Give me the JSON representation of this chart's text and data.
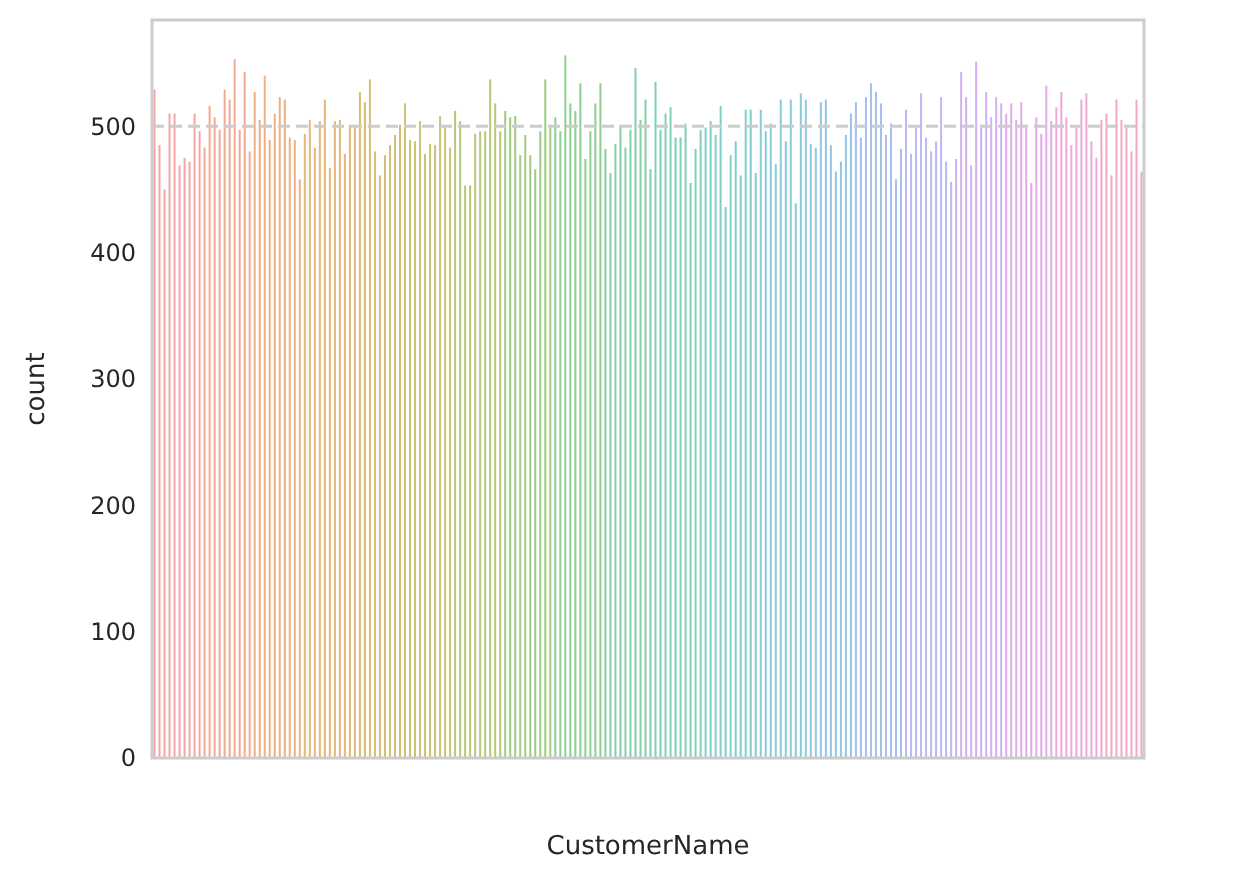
{
  "chart_data": {
    "type": "bar",
    "xlabel": "CustomerName",
    "ylabel": "count",
    "categories": [
      null,
      null,
      null,
      null,
      null,
      null,
      null,
      null,
      null,
      null,
      null,
      null,
      null,
      null,
      null,
      null,
      null,
      null,
      null,
      null,
      null,
      null,
      null,
      null,
      null,
      null,
      null,
      null,
      null,
      null,
      null,
      null,
      null,
      null,
      null,
      null,
      null,
      null,
      null,
      null,
      null,
      null,
      null,
      null,
      null,
      null,
      null,
      null,
      null,
      null,
      null,
      null,
      null,
      null,
      null,
      null,
      null,
      null,
      null,
      null,
      null,
      null,
      null,
      null,
      null,
      null,
      null,
      null,
      null,
      null,
      null,
      null,
      null,
      null,
      null,
      null,
      null,
      null,
      null,
      null,
      null,
      null,
      null,
      null,
      null,
      null,
      null,
      null,
      null,
      null,
      null,
      null,
      null,
      null,
      null,
      null,
      null,
      null,
      null,
      null,
      null,
      null,
      null,
      null,
      null,
      null,
      null,
      null,
      null,
      null,
      null,
      null,
      null,
      null,
      null,
      null,
      null,
      null,
      null,
      null,
      null,
      null,
      null,
      null,
      null,
      null,
      null,
      null,
      null,
      null,
      null,
      null,
      null,
      null,
      null,
      null,
      null,
      null,
      null,
      null,
      null,
      null,
      null,
      null,
      null,
      null,
      null,
      null,
      null,
      null,
      null,
      null,
      null,
      null,
      null,
      null,
      null,
      null,
      null,
      null,
      null,
      null,
      null,
      null,
      null,
      null,
      null,
      null,
      null,
      null,
      null,
      null,
      null,
      null,
      null,
      null,
      null,
      null,
      null,
      null,
      null,
      null,
      null,
      null,
      null,
      null,
      null,
      null,
      null,
      null,
      null,
      null,
      null,
      null,
      null,
      null,
      null,
      null
    ],
    "values": [
      529,
      485,
      450,
      510,
      510,
      469,
      475,
      472,
      510,
      496,
      483,
      516,
      507,
      497,
      529,
      521,
      553,
      497,
      543,
      480,
      527,
      505,
      540,
      489,
      510,
      523,
      521,
      491,
      489,
      458,
      494,
      505,
      483,
      504,
      521,
      467,
      504,
      505,
      478,
      501,
      501,
      527,
      519,
      537,
      480,
      461,
      477,
      485,
      493,
      501,
      518,
      489,
      488,
      504,
      478,
      486,
      485,
      508,
      499,
      483,
      512,
      504,
      453,
      453,
      494,
      496,
      496,
      537,
      518,
      496,
      512,
      507,
      508,
      477,
      493,
      477,
      466,
      496,
      537,
      499,
      507,
      496,
      556,
      518,
      512,
      534,
      474,
      496,
      518,
      534,
      482,
      463,
      486,
      501,
      483,
      497,
      546,
      505,
      521,
      466,
      535,
      497,
      510,
      515,
      491,
      491,
      502,
      455,
      482,
      497,
      499,
      504,
      493,
      516,
      436,
      477,
      488,
      461,
      513,
      513,
      463,
      513,
      496,
      502,
      470,
      521,
      488,
      521,
      439,
      526,
      521,
      486,
      483,
      519,
      521,
      485,
      464,
      472,
      493,
      510,
      519,
      491,
      523,
      534,
      527,
      518,
      493,
      502,
      458,
      482,
      513,
      478,
      499,
      526,
      491,
      480,
      488,
      523,
      472,
      456,
      474,
      543,
      523,
      469,
      551,
      499,
      527,
      507,
      523,
      518,
      510,
      518,
      505,
      519,
      499,
      455,
      507,
      494,
      532,
      504,
      515,
      527,
      507,
      485,
      499,
      521,
      526,
      488,
      475,
      505,
      510,
      461,
      521,
      505,
      501,
      480,
      521,
      464
    ],
    "colors": [
      "#f4a6a6",
      "#f4a6a6",
      "#f4a6a6",
      "#f4a6a6",
      "#f4a6a6",
      "#f4a6a6",
      "#f4a6a6",
      "#f4a6a6",
      "#f4a6a6",
      "#f4a6a6",
      "#f2aa94",
      "#f2aa94",
      "#f2aa94",
      "#f2aa94",
      "#f2aa94",
      "#f2aa94",
      "#f2aa94",
      "#f2aa94",
      "#f2aa94",
      "#f2aa94",
      "#eeb183",
      "#eeb183",
      "#eeb183",
      "#eeb183",
      "#eeb183",
      "#eeb183",
      "#eeb183",
      "#eeb183",
      "#eeb183",
      "#eeb183",
      "#e6b77a",
      "#e6b77a",
      "#e6b77a",
      "#e6b77a",
      "#e6b77a",
      "#e6b77a",
      "#e6b77a",
      "#e6b77a",
      "#e6b77a",
      "#e6b77a",
      "#d9bd74",
      "#d9bd74",
      "#d9bd74",
      "#d9bd74",
      "#d9bd74",
      "#d9bd74",
      "#d9bd74",
      "#d9bd74",
      "#d9bd74",
      "#d9bd74",
      "#c9c374",
      "#c9c374",
      "#c9c374",
      "#c9c374",
      "#c9c374",
      "#c9c374",
      "#c9c374",
      "#c9c374",
      "#c9c374",
      "#c9c374",
      "#b6c877",
      "#b6c877",
      "#b6c877",
      "#b6c877",
      "#b6c877",
      "#b6c877",
      "#b6c877",
      "#b6c877",
      "#b6c877",
      "#b6c877",
      "#9fcc80",
      "#9fcc80",
      "#9fcc80",
      "#9fcc80",
      "#9fcc80",
      "#9fcc80",
      "#9fcc80",
      "#9fcc80",
      "#9fcc80",
      "#9fcc80",
      "#8dcf92",
      "#8dcf92",
      "#8dcf92",
      "#8dcf92",
      "#8dcf92",
      "#8dcf92",
      "#8dcf92",
      "#8dcf92",
      "#8dcf92",
      "#8dcf92",
      "#84d0a6",
      "#84d0a6",
      "#84d0a6",
      "#84d0a6",
      "#84d0a6",
      "#84d0a6",
      "#84d0a6",
      "#84d0a6",
      "#84d0a6",
      "#84d0a6",
      "#80d0b8",
      "#80d0b8",
      "#80d0b8",
      "#80d0b8",
      "#80d0b8",
      "#80d0b8",
      "#80d0b8",
      "#80d0b8",
      "#80d0b8",
      "#80d0b8",
      "#80cfc8",
      "#80cfc8",
      "#80cfc8",
      "#80cfc8",
      "#80cfc8",
      "#80cfc8",
      "#80cfc8",
      "#80cfc8",
      "#80cfc8",
      "#80cfc8",
      "#86ccd8",
      "#86ccd8",
      "#86ccd8",
      "#86ccd8",
      "#86ccd8",
      "#86ccd8",
      "#86ccd8",
      "#86ccd8",
      "#86ccd8",
      "#86ccd8",
      "#92c6e6",
      "#92c6e6",
      "#92c6e6",
      "#92c6e6",
      "#92c6e6",
      "#92c6e6",
      "#92c6e6",
      "#92c6e6",
      "#92c6e6",
      "#92c6e6",
      "#a6bff0",
      "#a6bff0",
      "#a6bff0",
      "#a6bff0",
      "#a6bff0",
      "#a6bff0",
      "#a6bff0",
      "#a6bff0",
      "#a6bff0",
      "#a6bff0",
      "#bbb8f4",
      "#bbb8f4",
      "#bbb8f4",
      "#bbb8f4",
      "#bbb8f4",
      "#bbb8f4",
      "#bbb8f4",
      "#bbb8f4",
      "#bbb8f4",
      "#bbb8f4",
      "#d0b0f2",
      "#d0b0f2",
      "#d0b0f2",
      "#d0b0f2",
      "#d0b0f2",
      "#d0b0f2",
      "#d0b0f2",
      "#d0b0f2",
      "#d0b0f2",
      "#d0b0f2",
      "#e3a9ea",
      "#e3a9ea",
      "#e3a9ea",
      "#e3a9ea",
      "#e3a9ea",
      "#e3a9ea",
      "#e3a9ea",
      "#e3a9ea",
      "#e3a9ea",
      "#e3a9ea",
      "#efa7da",
      "#efa7da",
      "#efa7da",
      "#efa7da",
      "#efa7da",
      "#efa7da",
      "#efa7da",
      "#efa7da",
      "#efa7da",
      "#f4a7c6",
      "#f4a7c6",
      "#f4a7c6",
      "#f4a7c6",
      "#f4a7c6",
      "#f4a7c6",
      "#f4a7c6",
      "#f4a7c6",
      "#f4a7c6"
    ],
    "ylim": [
      0,
      584
    ],
    "yticks": [
      0,
      100,
      200,
      300,
      400,
      500
    ],
    "ref_lines": [
      {
        "axis": "y",
        "value": 500,
        "color": "#cccccc",
        "line_style": "dashed"
      }
    ]
  }
}
